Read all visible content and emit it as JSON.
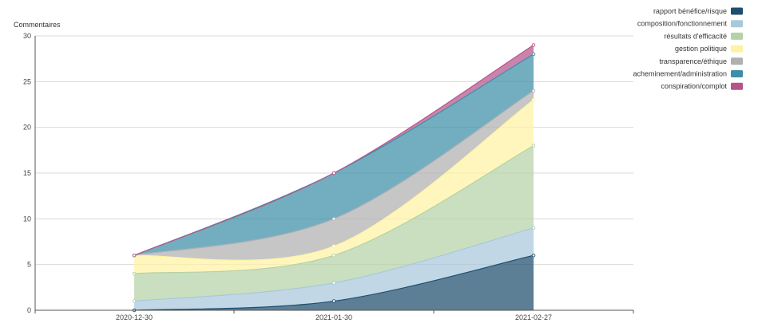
{
  "chart_data": {
    "type": "area",
    "stacked": true,
    "smooth": true,
    "ylabel": "Commentaires",
    "ylim": [
      0,
      30
    ],
    "yticks": [
      0,
      5,
      10,
      15,
      20,
      25,
      30
    ],
    "grid": true,
    "legend_position": "top-right",
    "categories": [
      "2020-12-30",
      "2021-01-30",
      "2021-02-27"
    ],
    "series": [
      {
        "name": "rapport bénéfice/risque",
        "color": "#1f4e6e",
        "values": [
          0,
          1,
          6
        ]
      },
      {
        "name": "composition/fonctionnement",
        "color": "#a9c8dc",
        "values": [
          1,
          2,
          3
        ]
      },
      {
        "name": "résultats d'efficacité",
        "color": "#b5d2a6",
        "values": [
          3,
          3,
          9
        ]
      },
      {
        "name": "gestion politique",
        "color": "#fff2a4",
        "values": [
          2,
          1,
          5
        ]
      },
      {
        "name": "transparence/éthique",
        "color": "#b0b0b0",
        "values": [
          0,
          3,
          1
        ]
      },
      {
        "name": "acheminement/administration",
        "color": "#3d8fa7",
        "values": [
          0,
          5,
          4
        ]
      },
      {
        "name": "conspiration/complot",
        "color": "#b6548a",
        "values": [
          0,
          0,
          1
        ]
      }
    ]
  }
}
